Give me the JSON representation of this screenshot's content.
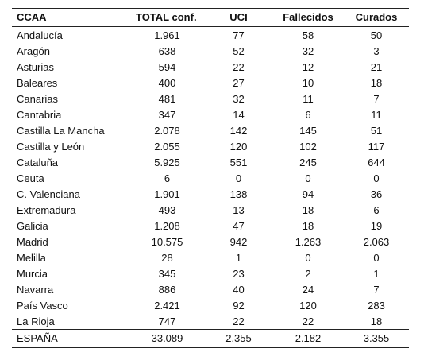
{
  "headers": {
    "ccaa": "CCAA",
    "total": "TOTAL conf.",
    "uci": "UCI",
    "fallecidos": "Fallecidos",
    "curados": "Curados"
  },
  "rows": [
    {
      "ccaa": "Andalucía",
      "total": "1.961",
      "uci": "77",
      "fallecidos": "58",
      "curados": "50"
    },
    {
      "ccaa": "Aragón",
      "total": "638",
      "uci": "52",
      "fallecidos": "32",
      "curados": "3"
    },
    {
      "ccaa": "Asturias",
      "total": "594",
      "uci": "22",
      "fallecidos": "12",
      "curados": "21"
    },
    {
      "ccaa": "Baleares",
      "total": "400",
      "uci": "27",
      "fallecidos": "10",
      "curados": "18"
    },
    {
      "ccaa": "Canarias",
      "total": "481",
      "uci": "32",
      "fallecidos": "11",
      "curados": "7"
    },
    {
      "ccaa": "Cantabria",
      "total": "347",
      "uci": "14",
      "fallecidos": "6",
      "curados": "11"
    },
    {
      "ccaa": "Castilla La Mancha",
      "total": "2.078",
      "uci": "142",
      "fallecidos": "145",
      "curados": "51"
    },
    {
      "ccaa": "Castilla y León",
      "total": "2.055",
      "uci": "120",
      "fallecidos": "102",
      "curados": "117"
    },
    {
      "ccaa": "Cataluña",
      "total": "5.925",
      "uci": "551",
      "fallecidos": "245",
      "curados": "644"
    },
    {
      "ccaa": "Ceuta",
      "total": "6",
      "uci": "0",
      "fallecidos": "0",
      "curados": "0"
    },
    {
      "ccaa": "C. Valenciana",
      "total": "1.901",
      "uci": "138",
      "fallecidos": "94",
      "curados": "36"
    },
    {
      "ccaa": "Extremadura",
      "total": "493",
      "uci": "13",
      "fallecidos": "18",
      "curados": "6"
    },
    {
      "ccaa": "Galicia",
      "total": "1.208",
      "uci": "47",
      "fallecidos": "18",
      "curados": "19"
    },
    {
      "ccaa": "Madrid",
      "total": "10.575",
      "uci": "942",
      "fallecidos": "1.263",
      "curados": "2.063"
    },
    {
      "ccaa": "Melilla",
      "total": "28",
      "uci": "1",
      "fallecidos": "0",
      "curados": "0"
    },
    {
      "ccaa": "Murcia",
      "total": "345",
      "uci": "23",
      "fallecidos": "2",
      "curados": "1"
    },
    {
      "ccaa": "Navarra",
      "total": "886",
      "uci": "40",
      "fallecidos": "24",
      "curados": "7"
    },
    {
      "ccaa": "País Vasco",
      "total": "2.421",
      "uci": "92",
      "fallecidos": "120",
      "curados": "283"
    },
    {
      "ccaa": "La Rioja",
      "total": "747",
      "uci": "22",
      "fallecidos": "22",
      "curados": "18"
    }
  ],
  "footer": {
    "ccaa": "ESPAÑA",
    "total": "33.089",
    "uci": "2.355",
    "fallecidos": "2.182",
    "curados": "3.355"
  }
}
